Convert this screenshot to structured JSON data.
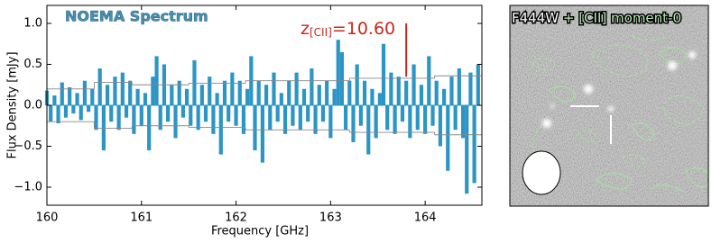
{
  "chart_data": {
    "type": "bar",
    "title": "NOEMA Spectrum",
    "xlabel": "Frequency [GHz]",
    "ylabel": "Flux Density [mJy]",
    "annotation": {
      "text": "z",
      "subscript": "[CII]",
      "suffix": "=10.60",
      "x": 163.8,
      "ymin": 0.35,
      "ymax": 1.0,
      "color": "#c8281c"
    },
    "color": "#2b95c6",
    "bar_width": 0.04,
    "xlim": [
      160,
      164.6
    ],
    "ylim": [
      -1.22,
      1.22
    ],
    "xticks": [
      160,
      161,
      162,
      163,
      164
    ],
    "yticks": [
      {
        "value": -1,
        "label": "−1.0"
      },
      {
        "value": -0.5,
        "label": "−0.5"
      },
      {
        "value": 0,
        "label": "0.0"
      },
      0.5,
      {
        "value": 1,
        "label": "1.0"
      }
    ],
    "x": [
      160.0,
      160.04,
      160.08,
      160.12,
      160.16,
      160.2,
      160.24,
      160.28,
      160.32,
      160.36,
      160.4,
      160.44,
      160.48,
      160.52,
      160.56,
      160.6,
      160.64,
      160.68,
      160.72,
      160.76,
      160.8,
      160.84,
      160.88,
      160.92,
      160.96,
      161.0,
      161.04,
      161.08,
      161.12,
      161.16,
      161.2,
      161.24,
      161.28,
      161.32,
      161.36,
      161.4,
      161.44,
      161.48,
      161.52,
      161.56,
      161.6,
      161.64,
      161.68,
      161.72,
      161.76,
      161.8,
      161.84,
      161.88,
      161.92,
      161.96,
      162.0,
      162.04,
      162.08,
      162.12,
      162.16,
      162.2,
      162.24,
      162.28,
      162.32,
      162.36,
      162.4,
      162.44,
      162.48,
      162.52,
      162.56,
      162.6,
      162.64,
      162.68,
      162.72,
      162.76,
      162.8,
      162.84,
      162.88,
      162.92,
      162.96,
      163.0,
      163.04,
      163.08,
      163.12,
      163.16,
      163.2,
      163.24,
      163.28,
      163.32,
      163.36,
      163.4,
      163.44,
      163.48,
      163.52,
      163.56,
      163.6,
      163.64,
      163.68,
      163.72,
      163.76,
      163.8,
      163.84,
      163.88,
      163.92,
      163.96,
      164.0,
      164.04,
      164.08,
      164.12,
      164.16,
      164.2,
      164.24,
      164.28,
      164.32,
      164.36,
      164.4,
      164.44,
      164.48,
      164.52,
      164.56
    ],
    "values": [
      0.18,
      -0.2,
      0.12,
      -0.22,
      0.28,
      -0.15,
      0.22,
      -0.1,
      0.15,
      -0.18,
      0.3,
      -0.08,
      0.2,
      -0.3,
      0.45,
      -0.55,
      0.25,
      -0.2,
      0.35,
      -0.3,
      0.4,
      -0.15,
      0.3,
      -0.35,
      0.2,
      -0.25,
      0.15,
      -0.55,
      0.35,
      0.6,
      -0.3,
      0.5,
      -0.2,
      0.25,
      -0.4,
      0.3,
      -0.15,
      0.2,
      -0.25,
      0.55,
      -0.3,
      0.25,
      -0.2,
      0.35,
      -0.35,
      0.15,
      -0.6,
      0.3,
      -0.2,
      0.4,
      -0.25,
      0.3,
      -0.35,
      0.2,
      0.6,
      -0.55,
      0.3,
      -0.7,
      0.25,
      -0.3,
      0.4,
      -0.2,
      0.15,
      -0.35,
      0.3,
      -0.25,
      0.4,
      -0.3,
      0.2,
      -0.2,
      0.45,
      -0.35,
      0.25,
      -0.2,
      0.3,
      -0.4,
      0.2,
      0.8,
      0.65,
      -0.3,
      0.3,
      -0.45,
      0.5,
      -0.25,
      0.3,
      -0.6,
      0.2,
      -0.4,
      0.15,
      0.75,
      -0.3,
      0.4,
      -0.35,
      0.35,
      -0.2,
      0.3,
      -0.4,
      0.5,
      -0.3,
      0.25,
      -0.35,
      0.6,
      -0.25,
      0.3,
      -0.5,
      0.2,
      -0.8,
      0.35,
      -0.3,
      0.45,
      -0.4,
      -1.08,
      0.4,
      -0.95,
      0.5
    ],
    "rms_edges": [
      160,
      160.5,
      160.9,
      161.5,
      162.1,
      162.6,
      163.2,
      163.7,
      164.1,
      164.6
    ],
    "rms": [
      0.2,
      0.28,
      0.25,
      0.27,
      0.3,
      0.3,
      0.33,
      0.33,
      0.36
    ],
    "rms_color": "#888888"
  },
  "image_panel": {
    "title_parts": [
      "F444W",
      "+",
      "[CII] moment-0"
    ]
  }
}
